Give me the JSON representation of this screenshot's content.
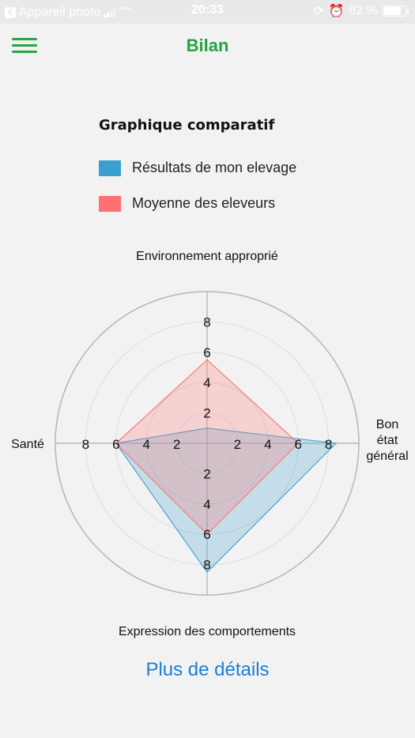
{
  "status_bar": {
    "carrier": "Appareil photo",
    "time": "20:33",
    "battery": "82 %"
  },
  "header": {
    "title": "Bilan"
  },
  "chart_data": {
    "type": "radar",
    "title": "Graphique comparatif",
    "axes": [
      "Environnement approprié",
      "Bon état général",
      "Expression des comportements",
      "Santé"
    ],
    "axis_label_lines": [
      [
        "Environnement approprié"
      ],
      [
        "Bon",
        "état",
        "général"
      ],
      [
        "Expression des comportements"
      ],
      [
        "Santé"
      ]
    ],
    "rmax": 10,
    "ticks": [
      2,
      4,
      6,
      8
    ],
    "grid": true,
    "legend_position": "top",
    "series": [
      {
        "name": "Résultats de mon elevage",
        "color": "#3a9fd0",
        "values": [
          1,
          8.5,
          8.5,
          6
        ]
      },
      {
        "name": "Moyenne des eleveurs",
        "color": "#ff6e70",
        "values": [
          5.5,
          6,
          6,
          6
        ]
      }
    ]
  },
  "footer": {
    "details_label": "Plus de détails"
  }
}
